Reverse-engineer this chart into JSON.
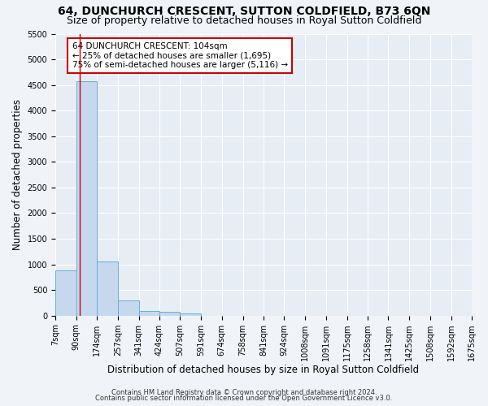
{
  "title": "64, DUNCHURCH CRESCENT, SUTTON COLDFIELD, B73 6QN",
  "subtitle": "Size of property relative to detached houses in Royal Sutton Coldfield",
  "xlabel": "Distribution of detached houses by size in Royal Sutton Coldfield",
  "ylabel": "Number of detached properties",
  "footnote1": "Contains HM Land Registry data © Crown copyright and database right 2024.",
  "footnote2": "Contains public sector information licensed under the Open Government Licence v3.0.",
  "bin_edges": [
    7,
    90,
    174,
    257,
    341,
    424,
    507,
    591,
    674,
    758,
    841,
    924,
    1008,
    1091,
    1175,
    1258,
    1341,
    1425,
    1508,
    1592,
    1675
  ],
  "bar_heights": [
    880,
    4580,
    1060,
    295,
    85,
    70,
    50,
    0,
    0,
    0,
    0,
    0,
    0,
    0,
    0,
    0,
    0,
    0,
    0,
    0
  ],
  "bar_color": "#c5d8ed",
  "bar_edge_color": "#6aaed6",
  "property_size": 104,
  "property_line_color": "#cc0000",
  "annotation_text": "64 DUNCHURCH CRESCENT: 104sqm\n← 25% of detached houses are smaller (1,695)\n75% of semi-detached houses are larger (5,116) →",
  "annotation_box_color": "#cc0000",
  "ylim": [
    0,
    5500
  ],
  "yticks": [
    0,
    500,
    1000,
    1500,
    2000,
    2500,
    3000,
    3500,
    4000,
    4500,
    5000,
    5500
  ],
  "background_color": "#f0f4f8",
  "plot_bg_color": "#e6edf5",
  "grid_color": "#ffffff",
  "title_fontsize": 10,
  "subtitle_fontsize": 9,
  "ylabel_fontsize": 8.5,
  "xlabel_fontsize": 8.5,
  "tick_fontsize": 7,
  "annotation_fontsize": 7.5,
  "footnote_fontsize": 6
}
